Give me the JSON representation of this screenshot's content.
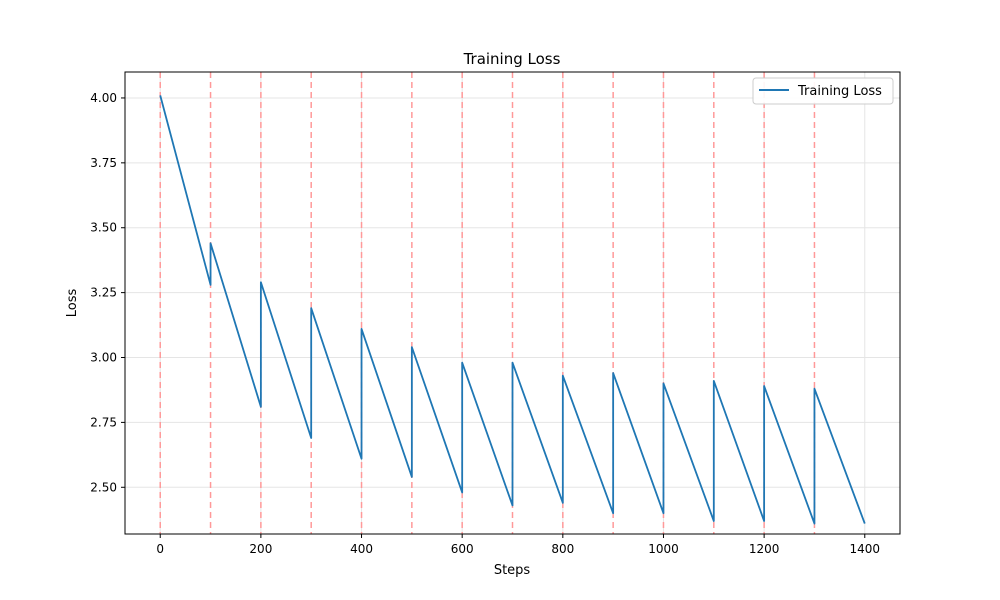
{
  "chart_data": {
    "type": "line",
    "title": "Training Loss",
    "xlabel": "Steps",
    "ylabel": "Loss",
    "xlim": [
      -70,
      1470
    ],
    "ylim": [
      2.32,
      4.1
    ],
    "xticks": [
      0,
      200,
      400,
      600,
      800,
      1000,
      1200,
      1400
    ],
    "yticks": [
      2.5,
      2.75,
      3.0,
      3.25,
      3.5,
      3.75,
      4.0
    ],
    "ytick_labels": [
      "2.50",
      "2.75",
      "3.00",
      "3.25",
      "3.50",
      "3.75",
      "4.00"
    ],
    "grid": true,
    "legend": {
      "position": "top-right",
      "entries": [
        "Training Loss"
      ]
    },
    "colors": {
      "series": "#1f77b4",
      "vlines": "#ff9999",
      "grid": "#e5e5e5"
    },
    "series": [
      {
        "name": "Training Loss",
        "x": [
          0,
          100,
          100,
          200,
          200,
          300,
          300,
          400,
          400,
          500,
          500,
          600,
          600,
          700,
          700,
          800,
          800,
          900,
          900,
          1000,
          1000,
          1100,
          1100,
          1200,
          1200,
          1300,
          1300,
          1400
        ],
        "y": [
          4.01,
          3.28,
          3.44,
          2.81,
          3.29,
          2.69,
          3.19,
          2.61,
          3.11,
          2.54,
          3.04,
          2.48,
          2.98,
          2.43,
          2.98,
          2.44,
          2.93,
          2.4,
          2.94,
          2.4,
          2.9,
          2.37,
          2.91,
          2.37,
          2.89,
          2.36,
          2.88,
          2.36
        ]
      }
    ],
    "vlines": [
      0,
      100,
      200,
      300,
      400,
      500,
      600,
      700,
      800,
      900,
      1000,
      1100,
      1200,
      1300
    ]
  }
}
